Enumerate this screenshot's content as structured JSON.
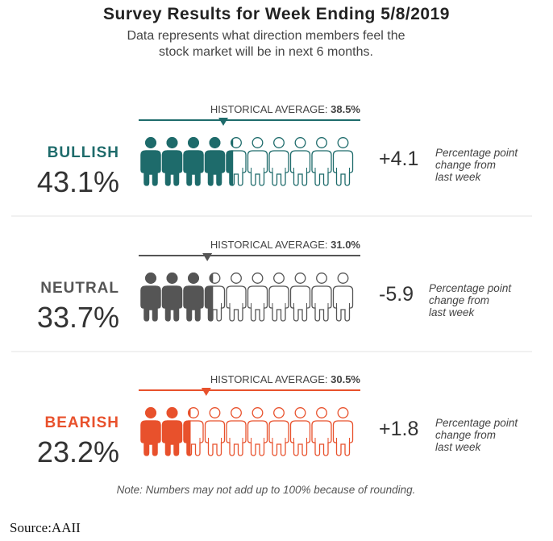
{
  "title": "Survey Results for Week Ending 5/8/2019",
  "subtitle_lines": [
    "Data represents what direction members feel the",
    "stock market will be in next 6 months."
  ],
  "chart_data": {
    "type": "pictograph",
    "icons_per_row": 10,
    "hist_avg_label": "HISTORICAL AVERAGE:",
    "change_caption_lines": [
      "Percentage point",
      "change from",
      "last week"
    ],
    "rows": [
      {
        "category": "BULLISH",
        "value": 43.1,
        "value_label": "43.1%",
        "historical_average": 38.5,
        "historical_average_label": "38.5%",
        "change": 4.1,
        "change_label": "+4.1",
        "color": "#1e6b6b"
      },
      {
        "category": "NEUTRAL",
        "value": 33.7,
        "value_label": "33.7%",
        "historical_average": 31.0,
        "historical_average_label": "31.0%",
        "change": -5.9,
        "change_label": "-5.9",
        "color": "#555555"
      },
      {
        "category": "BEARISH",
        "value": 23.2,
        "value_label": "23.2%",
        "historical_average": 30.5,
        "historical_average_label": "30.5%",
        "change": 1.8,
        "change_label": "+1.8",
        "color": "#e8512c"
      }
    ]
  },
  "note": "Note: Numbers may not add up to 100% because of rounding.",
  "source": "Source:AAII"
}
